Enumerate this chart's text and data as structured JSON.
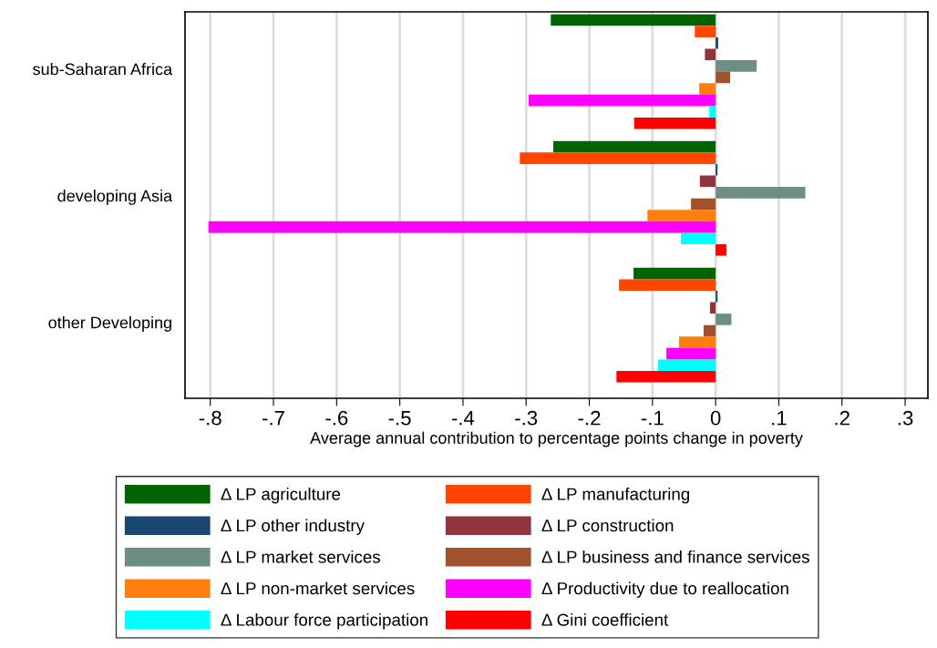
{
  "chart_data": {
    "type": "bar",
    "orientation": "horizontal",
    "xlabel": "Average annual contribution to percentage points change in poverty",
    "categories": [
      "sub-Saharan Africa",
      "developing Asia",
      "other Developing"
    ],
    "xlim": [
      -0.84,
      0.336
    ],
    "xticks": [
      {
        "value": -0.8,
        "label": "-.8"
      },
      {
        "value": -0.7,
        "label": "-.7"
      },
      {
        "value": -0.6,
        "label": "-.6"
      },
      {
        "value": -0.5,
        "label": "-.5"
      },
      {
        "value": -0.4,
        "label": "-.4"
      },
      {
        "value": -0.3,
        "label": "-.3"
      },
      {
        "value": -0.2,
        "label": "-.2"
      },
      {
        "value": -0.1,
        "label": "-.1"
      },
      0,
      {
        "value": 0.1,
        "label": ".1"
      },
      {
        "value": 0.2,
        "label": ".2"
      },
      {
        "value": 0.3,
        "label": ".3"
      }
    ],
    "grid": "x",
    "legend": "bottom",
    "series": [
      {
        "name": "Δ LP agriculture",
        "color": "#006400",
        "values": [
          -0.261,
          -0.257,
          -0.13
        ]
      },
      {
        "name": "Δ LP manufacturing",
        "color": "#ff4500",
        "values": [
          -0.033,
          -0.31,
          -0.153
        ]
      },
      {
        "name": "Δ LP other industry",
        "color": "#1a476f",
        "values": [
          0.004,
          0.003,
          0.003
        ]
      },
      {
        "name": "Δ LP construction",
        "color": "#90353b",
        "values": [
          -0.017,
          -0.025,
          -0.009
        ]
      },
      {
        "name": "Δ LP market services",
        "color": "#6e8e84",
        "values": [
          0.065,
          0.142,
          0.025
        ]
      },
      {
        "name": "Δ LP business and finance services",
        "color": "#a0522d",
        "values": [
          0.023,
          -0.039,
          -0.019
        ]
      },
      {
        "name": "Δ LP non-market services",
        "color": "#ff7f0e",
        "values": [
          -0.026,
          -0.108,
          -0.058
        ]
      },
      {
        "name": "Δ Productivity due to reallocation",
        "color": "#ff00ff",
        "values": [
          -0.296,
          -0.803,
          -0.078
        ]
      },
      {
        "name": "Δ Labour force participation",
        "color": "#00ffff",
        "values": [
          -0.01,
          -0.055,
          -0.091
        ]
      },
      {
        "name": "Δ Gini coefficient",
        "color": "#ff0000",
        "values": [
          -0.129,
          0.017,
          -0.157
        ]
      }
    ]
  }
}
